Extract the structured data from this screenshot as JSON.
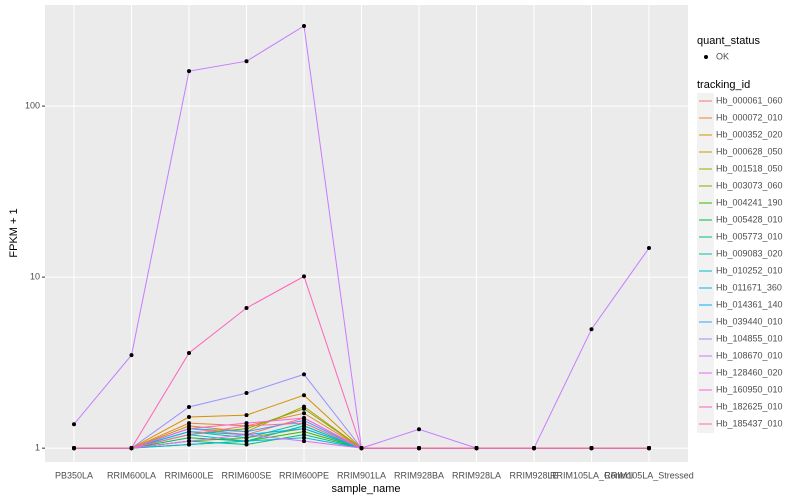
{
  "chart_data": {
    "type": "line",
    "x_label": "sample_name",
    "y_label": "FPKM + 1",
    "categories": [
      "PB350LA",
      "RRIM600LA",
      "RRIM600LE",
      "RRIM600SE",
      "RRIM600PE",
      "RRIM901LA",
      "RRIM928BA",
      "RRIM928LA",
      "RRIM928LE",
      "RRIM105LA_Control",
      "RRIM105LA_Stressed"
    ],
    "yscale": "log",
    "ylim": [
      0.83,
      390
    ],
    "yticks": [
      1,
      10,
      100
    ],
    "grid": true,
    "point_color": "#000000",
    "legend": {
      "shape_title": "quant_status",
      "shape_labels": [
        "OK"
      ],
      "color_title": "tracking_id"
    },
    "series": [
      {
        "name": "Hb_000061_060",
        "color": "#F8766D",
        "values": [
          1,
          1,
          1.3,
          1.2,
          1.5,
          1,
          1,
          1,
          1,
          1,
          1
        ]
      },
      {
        "name": "Hb_000072_010",
        "color": "#EA8331",
        "values": [
          1,
          1,
          1.4,
          1.35,
          1.6,
          1,
          1,
          1,
          1,
          1,
          1
        ]
      },
      {
        "name": "Hb_000352_020",
        "color": "#D89000",
        "values": [
          1,
          1,
          1.52,
          1.56,
          2.04,
          1,
          1,
          1,
          1,
          1,
          1
        ]
      },
      {
        "name": "Hb_000628_050",
        "color": "#C09B00",
        "values": [
          1,
          1,
          1.35,
          1.25,
          1.75,
          1,
          1,
          1,
          1,
          1,
          1
        ]
      },
      {
        "name": "Hb_001518_050",
        "color": "#A3A500",
        "values": [
          1,
          1,
          1.1,
          1.15,
          1.3,
          1,
          1,
          1,
          1,
          1,
          1
        ]
      },
      {
        "name": "Hb_003073_060",
        "color": "#7CAE00",
        "values": [
          1,
          1,
          1.2,
          1.3,
          1.7,
          1,
          1,
          1,
          1,
          1,
          1
        ]
      },
      {
        "name": "Hb_004241_190",
        "color": "#39B600",
        "values": [
          1,
          1,
          1.05,
          1.1,
          1.25,
          1,
          1,
          1,
          1,
          1,
          1
        ]
      },
      {
        "name": "Hb_005428_010",
        "color": "#00BB4E",
        "values": [
          1,
          1,
          1.15,
          1.1,
          1.35,
          1,
          1,
          1,
          1,
          1,
          1
        ]
      },
      {
        "name": "Hb_005773_010",
        "color": "#00BF7D",
        "values": [
          1,
          1,
          1.1,
          1.05,
          1.2,
          1,
          1,
          1,
          1,
          1,
          1
        ]
      },
      {
        "name": "Hb_009083_020",
        "color": "#00C1A3",
        "values": [
          1,
          1,
          1.25,
          1.15,
          1.4,
          1,
          1,
          1,
          1,
          1,
          1
        ]
      },
      {
        "name": "Hb_010252_010",
        "color": "#00BFC4",
        "values": [
          1,
          1,
          1.2,
          1.1,
          1.35,
          1,
          1,
          1,
          1,
          1,
          1
        ]
      },
      {
        "name": "Hb_011671_360",
        "color": "#00BAE0",
        "values": [
          1,
          1,
          1.05,
          1.1,
          1.15,
          1,
          1,
          1,
          1,
          1,
          1
        ]
      },
      {
        "name": "Hb_014361_140",
        "color": "#00B0F6",
        "values": [
          1,
          1,
          1.25,
          1.2,
          1.3,
          1,
          1,
          1,
          1,
          1,
          1
        ]
      },
      {
        "name": "Hb_039440_010",
        "color": "#35A2FF",
        "values": [
          1,
          1,
          1.3,
          1.25,
          1.45,
          1,
          1,
          1,
          1,
          1,
          1
        ]
      },
      {
        "name": "Hb_104855_010",
        "color": "#9590FF",
        "values": [
          1,
          1,
          1.74,
          2.1,
          2.7,
          1,
          1,
          1,
          1,
          1,
          1
        ]
      },
      {
        "name": "Hb_108670_010",
        "color": "#C77CFF",
        "values": [
          1.38,
          3.5,
          160,
          183,
          294,
          1,
          1.29,
          1,
          1,
          4.96,
          14.8
        ]
      },
      {
        "name": "Hb_128460_020",
        "color": "#E76BF3",
        "values": [
          1,
          1,
          1.1,
          1.2,
          1.1,
          1,
          1,
          1,
          1,
          1,
          1
        ]
      },
      {
        "name": "Hb_160950_010",
        "color": "#FA62DB",
        "values": [
          1,
          1,
          1.3,
          1.4,
          1.5,
          1,
          1,
          1,
          1,
          1,
          1
        ]
      },
      {
        "name": "Hb_182625_010",
        "color": "#FF62BC",
        "values": [
          1,
          1,
          3.6,
          6.6,
          10.1,
          1,
          1,
          1,
          1,
          1,
          1
        ]
      },
      {
        "name": "Hb_185437_010",
        "color": "#FF6C91",
        "values": [
          1,
          1,
          1.2,
          1.35,
          1.4,
          1,
          1,
          1,
          1,
          1,
          1
        ]
      }
    ]
  }
}
